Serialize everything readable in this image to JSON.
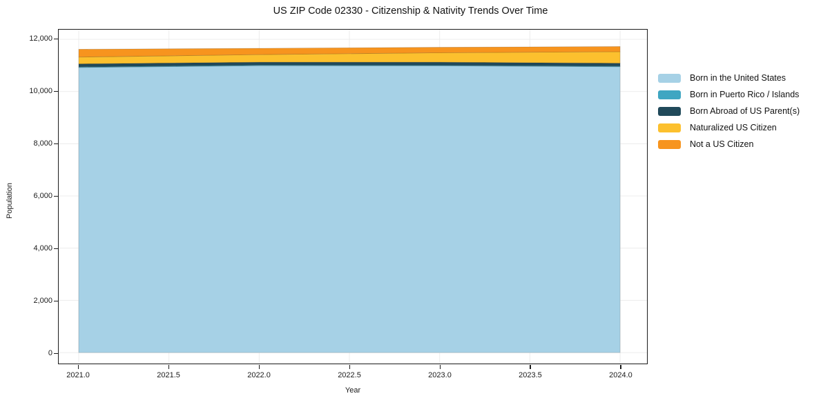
{
  "chart_data": {
    "type": "area",
    "stacked": true,
    "title": "US ZIP Code 02330 - Citizenship & Nativity Trends Over Time",
    "xlabel": "Year",
    "ylabel": "Population",
    "x": [
      2021,
      2022,
      2023,
      2024
    ],
    "series": [
      {
        "name": "Born in the United States",
        "color": "#A6D1E6",
        "values": [
          10920,
          10990,
          10985,
          10950
        ]
      },
      {
        "name": "Born in Puerto Rico / Islands",
        "color": "#3FA6C2",
        "values": [
          25,
          25,
          25,
          25
        ]
      },
      {
        "name": "Born Abroad of US Parent(s)",
        "color": "#20495A",
        "values": [
          115,
          110,
          115,
          110
        ]
      },
      {
        "name": "Naturalized US Citizen",
        "color": "#FCC02E",
        "values": [
          260,
          290,
          360,
          440
        ]
      },
      {
        "name": "Not a US Citizen",
        "color": "#F7941E",
        "values": [
          300,
          240,
          210,
          200
        ]
      }
    ],
    "totals": [
      11620,
      11655,
      11695,
      11725
    ],
    "x_ticks": [
      "2021.0",
      "2021.5",
      "2022.0",
      "2022.5",
      "2023.0",
      "2023.5",
      "2024.0"
    ],
    "x_tick_values": [
      2021.0,
      2021.5,
      2022.0,
      2022.5,
      2023.0,
      2023.5,
      2024.0
    ],
    "y_ticks": [
      "0",
      "2,000",
      "4,000",
      "6,000",
      "8,000",
      "10,000",
      "12,000"
    ],
    "y_tick_values": [
      0,
      2000,
      4000,
      6000,
      8000,
      10000,
      12000
    ],
    "xlim": [
      2020.889,
      2024.149
    ],
    "ylim": [
      -420,
      12370
    ],
    "grid": true,
    "grid_color": "#ececec",
    "legend_position": "right",
    "spine_color": "#1a1a1a"
  }
}
